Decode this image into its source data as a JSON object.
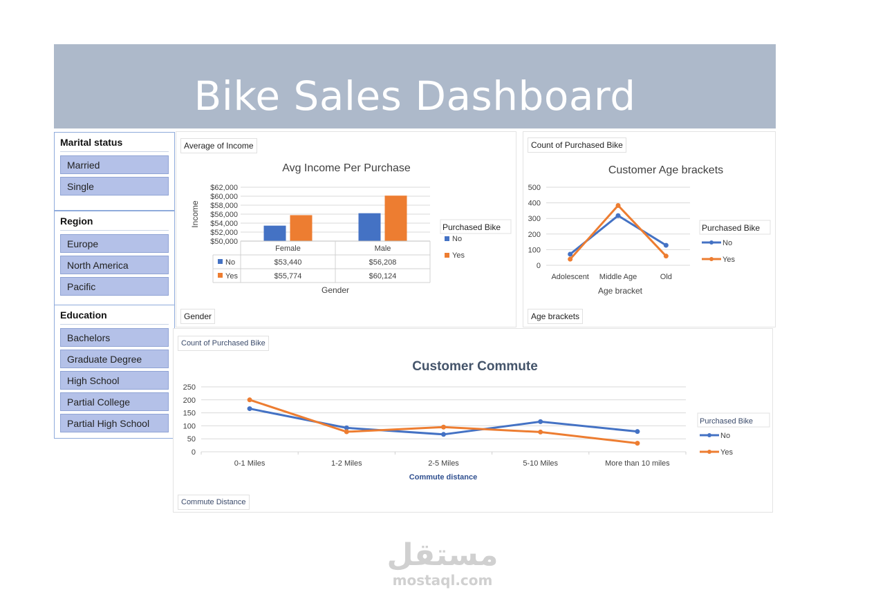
{
  "title": "Bike Sales Dashboard",
  "slicers": [
    {
      "title": "Marital status",
      "items": [
        "Married",
        "Single"
      ]
    },
    {
      "title": "Region",
      "items": [
        "Europe",
        "North America",
        "Pacific"
      ]
    },
    {
      "title": "Education",
      "items": [
        "Bachelors",
        "Graduate Degree",
        "High School",
        "Partial College",
        "Partial High School"
      ]
    }
  ],
  "income_panel": {
    "value_field": "Average of Income",
    "axis_field": "Gender"
  },
  "age_panel": {
    "value_field": "Count of Purchased Bike",
    "axis_field": "Age brackets"
  },
  "commute_panel": {
    "value_field": "Count of Purchased Bike",
    "axis_field": "Commute Distance"
  },
  "colors": {
    "no": "#4472c4",
    "yes": "#ed7d31",
    "banner": "#adb9ca",
    "slicer_item": "#b4c1e8"
  },
  "chart_data": [
    {
      "type": "bar",
      "title": "Avg Income Per Purchase",
      "xlabel": "Gender",
      "ylabel": "Income",
      "categories": [
        "Female",
        "Male"
      ],
      "series": [
        {
          "name": "No",
          "values": [
            53440,
            56208
          ],
          "labels": [
            "$53,440",
            "$56,208"
          ]
        },
        {
          "name": "Yes",
          "values": [
            55774,
            60124
          ],
          "labels": [
            "$55,774",
            "$60,124"
          ]
        }
      ],
      "ylim": [
        50000,
        62000
      ],
      "yticks": [
        50000,
        52000,
        54000,
        56000,
        58000,
        60000,
        62000
      ],
      "ytick_labels": [
        "$50,000",
        "$52,000",
        "$54,000",
        "$56,000",
        "$58,000",
        "$60,000",
        "$62,000"
      ],
      "legend_title": "Purchased Bike",
      "legend_position": "right",
      "grid": true,
      "data_table": true
    },
    {
      "type": "line",
      "title": "Customer Age brackets",
      "xlabel": "Age bracket",
      "categories": [
        "Adolescent",
        "Middle Age",
        "Old"
      ],
      "series": [
        {
          "name": "No",
          "values": [
            71,
            318,
            128
          ]
        },
        {
          "name": "Yes",
          "values": [
            39,
            383,
            59
          ]
        }
      ],
      "ylim": [
        0,
        500
      ],
      "yticks": [
        0,
        100,
        200,
        300,
        400,
        500
      ],
      "legend_title": "Purchased Bike",
      "legend_position": "right",
      "grid": true
    },
    {
      "type": "line",
      "title": "Customer Commute",
      "xlabel": "Commute distance",
      "categories": [
        "0-1 Miles",
        "1-2 Miles",
        "2-5 Miles",
        "5-10 Miles",
        "More than 10 miles"
      ],
      "series": [
        {
          "name": "No",
          "values": [
            166,
            92,
            67,
            116,
            78
          ]
        },
        {
          "name": "Yes",
          "values": [
            200,
            77,
            95,
            76,
            33
          ]
        }
      ],
      "ylim": [
        0,
        250
      ],
      "yticks": [
        0,
        50,
        100,
        150,
        200,
        250
      ],
      "legend_title": "Purchased Bike",
      "legend_position": "right",
      "grid": true
    }
  ]
}
